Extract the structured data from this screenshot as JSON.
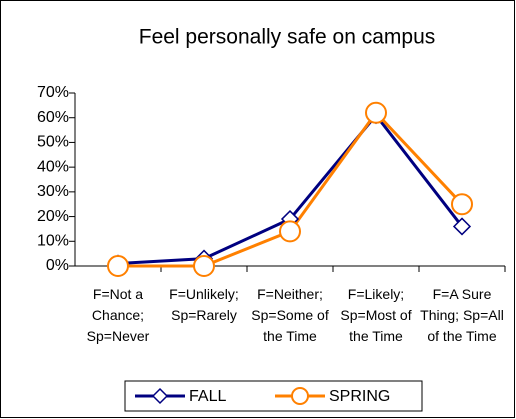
{
  "chart_data": {
    "type": "line",
    "title": "Feel personally safe on campus",
    "categories": [
      "F=Not a Chance; Sp=Never",
      "F=Unlikely; Sp=Rarely",
      "F=Neither; Sp=Some of the Time",
      "F=Likely; Sp=Most of the Time",
      "F=A Sure Thing; Sp=All of the Time"
    ],
    "series": [
      {
        "name": "FALL",
        "color": "#000080",
        "marker": "diamond",
        "values": [
          1,
          3,
          19,
          61,
          16
        ]
      },
      {
        "name": "SPRING",
        "color": "#ff8000",
        "marker": "circle",
        "values": [
          0,
          0,
          14,
          62,
          25
        ]
      }
    ],
    "ylim": [
      0,
      70
    ],
    "yticks": [
      {
        "value": 0,
        "label": "0%"
      },
      {
        "value": 10,
        "label": "10%"
      },
      {
        "value": 20,
        "label": "20%"
      },
      {
        "value": 30,
        "label": "30%"
      },
      {
        "value": 40,
        "label": "40%"
      },
      {
        "value": 50,
        "label": "50%"
      },
      {
        "value": 60,
        "label": "60%"
      },
      {
        "value": 70,
        "label": "70%"
      }
    ],
    "grid": false,
    "legend": "bottom"
  }
}
